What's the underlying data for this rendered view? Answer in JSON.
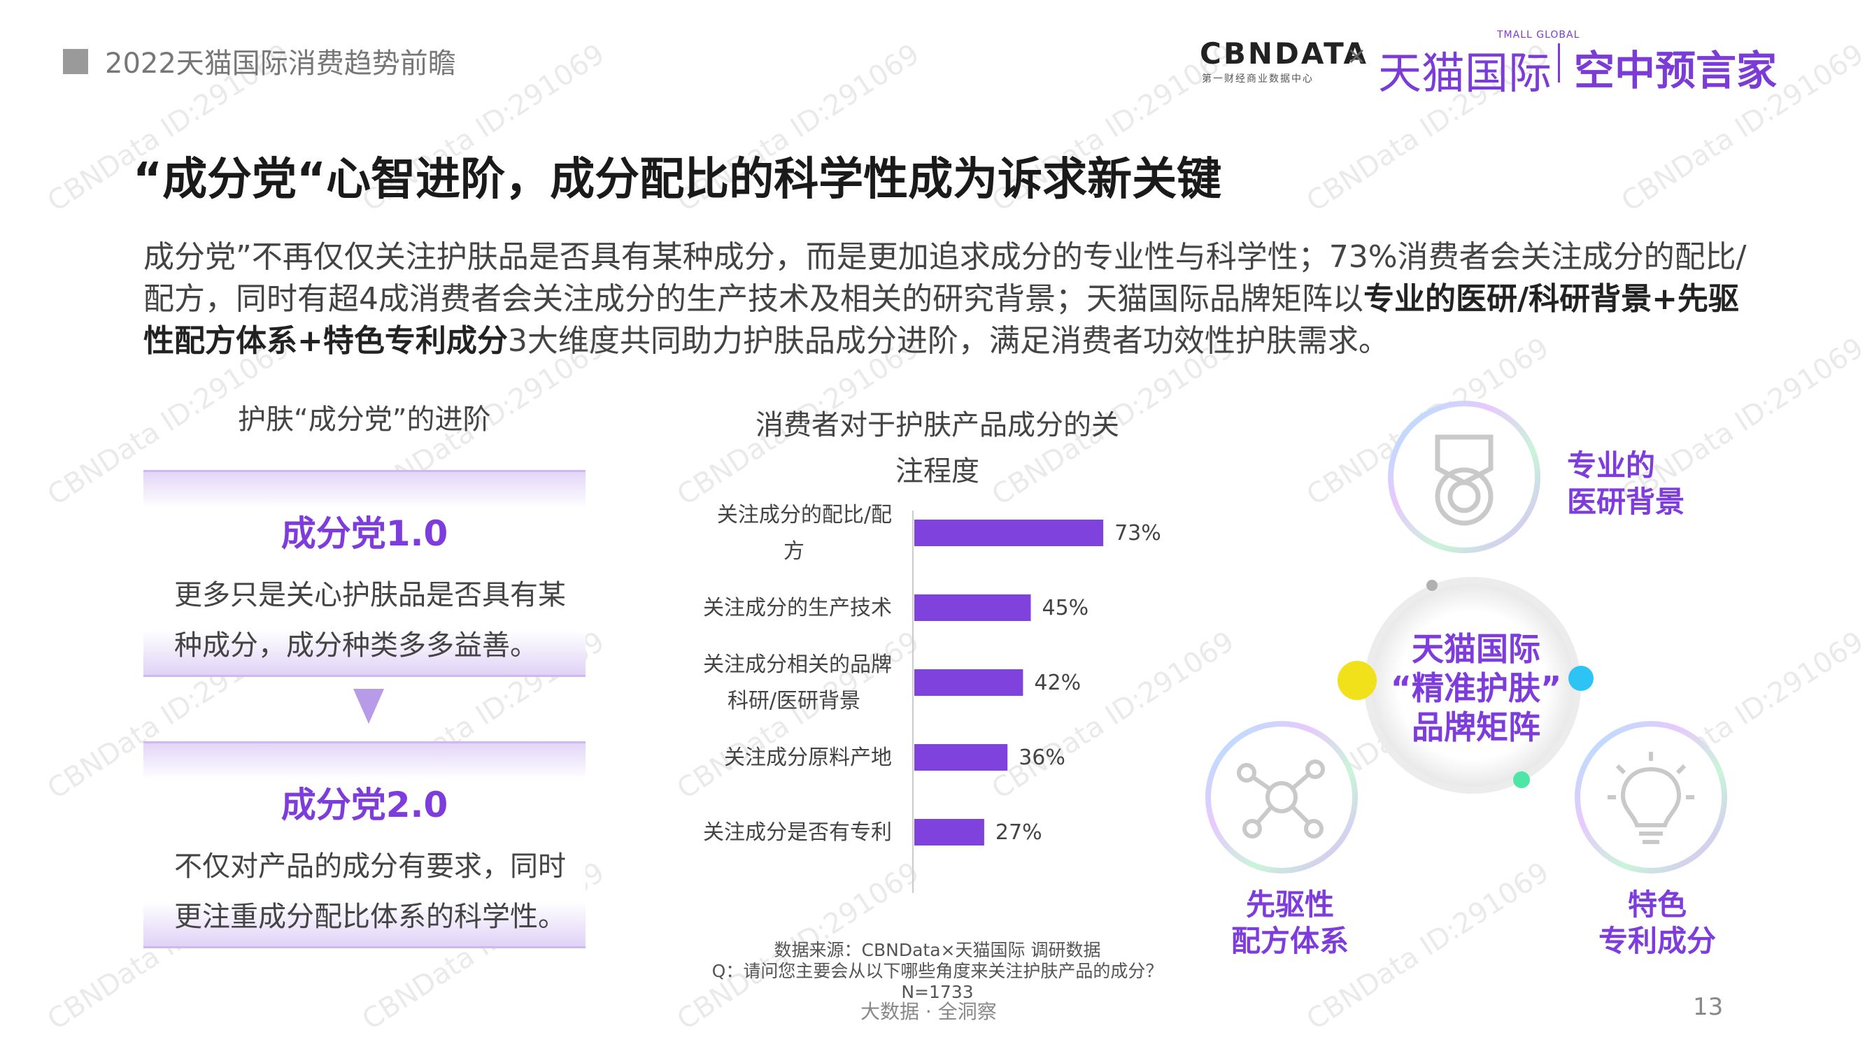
{
  "header": {
    "report_title": "2022天猫国际消费趋势前瞻",
    "logo_cbndata": "CBNDATA",
    "logo_cbndata_sub": "第一财经商业数据中心",
    "logo_x": "×",
    "logo_tmall_global": "TMALL GLOBAL",
    "logo_tmall": "天猫国际",
    "logo_kzyy": "空中预言家"
  },
  "title": "“成分党“心智进阶，成分配比的科学性成为诉求新关键",
  "description": {
    "part1": "成分党”不再仅仅关注护肤品是否具有某种成分，而是更加追求成分的专业性与科学性；73%消费者会关注成分的配比/配方，同时有超4成消费者会关注成分的生产技术及相关的研究背景；天猫国际品牌矩阵以",
    "bold1": "专业的医研/科研背景+先驱性配方体系+特色专利成分",
    "part2": "3大维度共同助力护肤品成分进阶，满足消费者功效性护肤需求。"
  },
  "left_panel": {
    "title": "护肤“成分党”的进阶",
    "stage1": {
      "name": "成分党1.0",
      "text": "更多只是关心护肤品是否具有某种成分，成分种类多多益善。"
    },
    "stage2": {
      "name": "成分党2.0",
      "text": "不仅对产品的成分有要求，同时更注重成分配比体系的科学性。"
    }
  },
  "chart_data": {
    "type": "bar",
    "orientation": "horizontal",
    "title": "消费者对于护肤产品成分的关注程度",
    "categories": [
      "关注成分的配比/配方",
      "关注成分的生产技术",
      "关注成分相关的品牌科研/医研背景",
      "关注成分原料产地",
      "关注成分是否有专利"
    ],
    "category_lines": [
      [
        "关注成分的配比/配",
        "方"
      ],
      [
        "关注成分的生产技术"
      ],
      [
        "关注成分相关的品牌",
        "科研/医研背景"
      ],
      [
        "关注成分原料产地"
      ],
      [
        "关注成分是否有专利"
      ]
    ],
    "values": [
      73,
      45,
      42,
      36,
      27
    ],
    "value_labels": [
      "73%",
      "45%",
      "42%",
      "36%",
      "27%"
    ],
    "unit": "%",
    "xlim": [
      0,
      100
    ],
    "bar_color": "#8042dc",
    "grid": false
  },
  "source": {
    "line1": "数据来源：CBNData×天猫国际 调研数据",
    "line2": "Q：请问您主要会从以下哪些角度来关注护肤产品的成分？",
    "line3": "N=1733"
  },
  "right_panel": {
    "center": [
      "天猫国际",
      "“精准护肤”",
      "品牌矩阵"
    ],
    "research": [
      "专业的",
      "医研背景"
    ],
    "formula": [
      "先驱性",
      "配方体系"
    ],
    "patent": [
      "特色",
      "专利成分"
    ],
    "icons": [
      "medal-icon",
      "molecule-icon",
      "lightbulb-icon"
    ]
  },
  "footer": "大数据 · 全洞察",
  "page_number": "13",
  "watermark": "CBNData ID:291069"
}
